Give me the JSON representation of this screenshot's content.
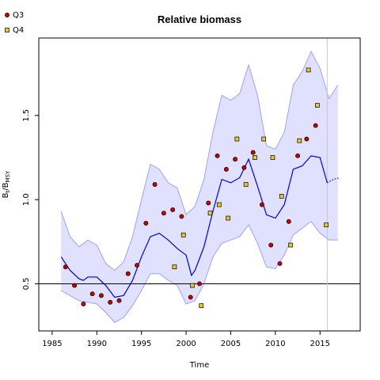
{
  "chart_data": {
    "type": "line",
    "title": "Relative biomass",
    "xlabel": "Time",
    "ylabel_main": "B",
    "ylabel_sub1": "t",
    "ylabel_mid": "/B",
    "ylabel_sub2": "MSY",
    "xlim": [
      1983.5,
      2019.5
    ],
    "ylim": [
      0.22,
      1.96
    ],
    "x_ticks": [
      1985,
      1990,
      1995,
      2000,
      2005,
      2010,
      2015
    ],
    "x_tick_labels": [
      "1985",
      "1990",
      "1995",
      "2000",
      "2005",
      "2010",
      "2015"
    ],
    "y_ticks": [
      0.5,
      1.0,
      1.5
    ],
    "y_tick_labels": [
      "0.5",
      "1.0",
      "1.5"
    ],
    "reference_line_y": 0.5,
    "current_year_line_x": 2015.8,
    "grid": false,
    "legend_position": "top-left",
    "legend": [
      {
        "label": "Q3",
        "marker": "circle",
        "color": "#cc0000"
      },
      {
        "label": "Q4",
        "marker": "square",
        "color": "#e8c82a"
      }
    ],
    "colors": {
      "band_fill": "#e0e0ff",
      "band_stroke": "#a0a0f8",
      "median_line": "#0000dd",
      "q3_points": "#cc0000",
      "q4_points": "#e8c82a",
      "current_year_line": "#c8c8c8",
      "reference_line": "#000000"
    },
    "median": {
      "x": [
        1986,
        1987,
        1988,
        1988.5,
        1989,
        1990,
        1991,
        1992,
        1993,
        1994,
        1995,
        1996,
        1997,
        1998,
        1999,
        2000,
        2000.6,
        2001,
        2002,
        2003,
        2004,
        2005,
        2006,
        2007,
        2008,
        2009,
        2010,
        2011,
        2012,
        2013,
        2014,
        2015,
        2015.8
      ],
      "y": [
        0.66,
        0.58,
        0.53,
        0.52,
        0.54,
        0.54,
        0.49,
        0.42,
        0.43,
        0.52,
        0.66,
        0.78,
        0.8,
        0.76,
        0.71,
        0.67,
        0.55,
        0.58,
        0.72,
        0.93,
        1.12,
        1.1,
        1.13,
        1.24,
        1.08,
        0.91,
        0.89,
        0.97,
        1.18,
        1.2,
        1.26,
        1.25,
        1.1
      ]
    },
    "projection": {
      "x": [
        2015.8,
        2016.5,
        2017.2
      ],
      "y": [
        1.1,
        1.12,
        1.13
      ]
    },
    "upper_band": {
      "x": [
        1986,
        1987,
        1988,
        1989,
        1990,
        1991,
        1992,
        1993,
        1994,
        1995,
        1996,
        1997,
        1998,
        1999,
        2000,
        2001,
        2002,
        2003,
        2004,
        2005,
        2006,
        2007,
        2008,
        2009,
        2010,
        2011,
        2012,
        2013,
        2014,
        2015,
        2016,
        2017
      ],
      "y": [
        0.93,
        0.78,
        0.72,
        0.76,
        0.73,
        0.62,
        0.58,
        0.63,
        0.78,
        1.0,
        1.21,
        1.18,
        1.1,
        1.07,
        0.91,
        0.96,
        1.12,
        1.4,
        1.62,
        1.59,
        1.63,
        1.8,
        1.62,
        1.32,
        1.3,
        1.4,
        1.68,
        1.76,
        1.88,
        1.78,
        1.6,
        1.68
      ]
    },
    "lower_band": {
      "x": [
        1986,
        1987,
        1988,
        1989,
        1990,
        1991,
        1992,
        1993,
        1994,
        1995,
        1996,
        1997,
        1998,
        1999,
        2000,
        2001,
        2002,
        2003,
        2004,
        2005,
        2006,
        2007,
        2008,
        2009,
        2010,
        2011,
        2012,
        2013,
        2014,
        2015,
        2016,
        2017
      ],
      "y": [
        0.46,
        0.43,
        0.4,
        0.39,
        0.38,
        0.33,
        0.27,
        0.3,
        0.37,
        0.46,
        0.56,
        0.56,
        0.52,
        0.49,
        0.38,
        0.4,
        0.5,
        0.66,
        0.74,
        0.76,
        0.78,
        0.85,
        0.74,
        0.6,
        0.59,
        0.67,
        0.79,
        0.83,
        0.87,
        0.8,
        0.76,
        0.76
      ]
    },
    "series": [
      {
        "name": "Q3",
        "x": [
          1986.5,
          1987.5,
          1988.5,
          1989.5,
          1990.5,
          1991.5,
          1992.5,
          1993.5,
          1994.5,
          1995.5,
          1996.5,
          1997.5,
          1998.5,
          1999.5,
          2000.5,
          2001.5,
          2002.5,
          2003.5,
          2004.5,
          2005.5,
          2006.5,
          2007.5,
          2008.5,
          2009.5,
          2010.5,
          2011.5,
          2012.5,
          2013.5,
          2014.5
        ],
        "y": [
          0.6,
          0.49,
          0.38,
          0.44,
          0.43,
          0.39,
          0.4,
          0.56,
          0.61,
          0.86,
          1.09,
          0.92,
          0.94,
          0.9,
          0.42,
          0.5,
          0.98,
          1.26,
          1.18,
          1.24,
          1.19,
          1.28,
          0.97,
          0.73,
          0.62,
          0.87,
          1.26,
          1.36,
          1.44
        ]
      },
      {
        "name": "Q4",
        "x": [
          1998.7,
          1999.7,
          2000.7,
          2001.7,
          2002.7,
          2003.7,
          2004.7,
          2005.7,
          2006.7,
          2007.7,
          2008.7,
          2009.7,
          2010.7,
          2011.7,
          2012.7,
          2013.7,
          2014.7,
          2015.7
        ],
        "y": [
          0.6,
          0.79,
          0.49,
          0.37,
          0.92,
          0.97,
          0.89,
          1.36,
          1.09,
          1.25,
          1.36,
          1.25,
          1.02,
          0.73,
          1.35,
          1.77,
          1.56,
          0.85
        ]
      }
    ]
  }
}
